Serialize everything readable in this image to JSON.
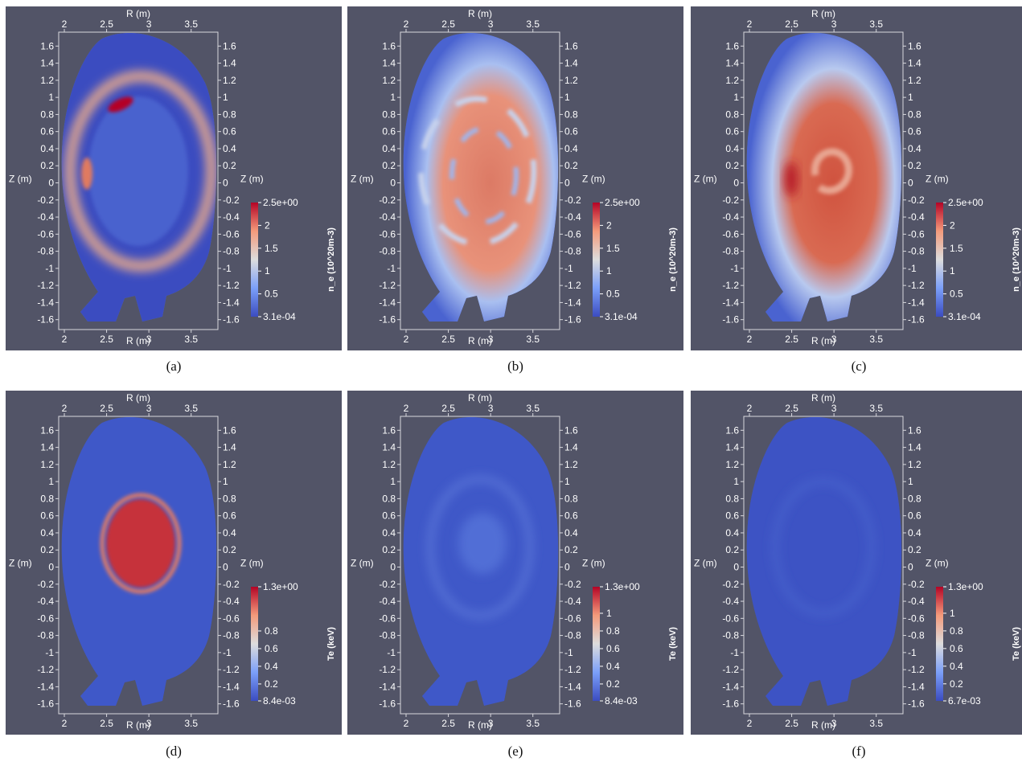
{
  "panels": [
    {
      "caption": "(a)",
      "quantity": "n_e",
      "pattern": "density-ring"
    },
    {
      "caption": "(b)",
      "quantity": "n_e",
      "pattern": "density-mixed"
    },
    {
      "caption": "(c)",
      "quantity": "n_e",
      "pattern": "density-swirl"
    },
    {
      "caption": "(d)",
      "quantity": "Te",
      "pattern": "temperature-hot-core"
    },
    {
      "caption": "(e)",
      "quantity": "Te",
      "pattern": "temperature-cooled"
    },
    {
      "caption": "(f)",
      "quantity": "Te",
      "pattern": "temperature-flat"
    }
  ],
  "colors": {
    "background": "#525467",
    "colormap": [
      "#3b4cc0",
      "#7b9ff9",
      "#dddddd",
      "#f49a7b",
      "#b40426"
    ]
  },
  "chart_data": [
    {
      "type": "heatmap",
      "panel": "(a)",
      "xlabel": "R (m)",
      "ylabel": "Z (m)",
      "xlim": [
        2,
        3.85
      ],
      "ylim": [
        -1.7,
        1.75
      ],
      "xticks": [
        "2",
        "2.5",
        "3",
        "3.5"
      ],
      "yticks": [
        "1.6",
        "1.4",
        "1.2",
        "1",
        "0.8",
        "0.6",
        "0.4",
        "0.2",
        "0",
        "-0.2",
        "-0.4",
        "-0.6",
        "-0.8",
        "-1",
        "-1.2",
        "-1.4",
        "-1.6"
      ],
      "colorbar": {
        "title": "n_e (10^20m-3)",
        "min": 0.00031,
        "max": 2.5,
        "min_label": "3.1e-04",
        "max_label": "2.5e+00",
        "ticks": [
          "2",
          "1.5",
          "1",
          "0.5"
        ]
      }
    },
    {
      "type": "heatmap",
      "panel": "(b)",
      "xlabel": "R (m)",
      "ylabel": "Z (m)",
      "xlim": [
        2,
        3.85
      ],
      "ylim": [
        -1.7,
        1.75
      ],
      "xticks": [
        "2",
        "2.5",
        "3",
        "3.5"
      ],
      "yticks": [
        "1.6",
        "1.4",
        "1.2",
        "1",
        "0.8",
        "0.6",
        "0.4",
        "0.2",
        "0",
        "-0.2",
        "-0.4",
        "-0.6",
        "-0.8",
        "-1",
        "-1.2",
        "-1.4",
        "-1.6"
      ],
      "colorbar": {
        "title": "n_e (10^20m-3)",
        "min": 0.00031,
        "max": 2.5,
        "min_label": "3.1e-04",
        "max_label": "2.5e+00",
        "ticks": [
          "2",
          "1.5",
          "1",
          "0.5"
        ]
      }
    },
    {
      "type": "heatmap",
      "panel": "(c)",
      "xlabel": "R (m)",
      "ylabel": "Z (m)",
      "xlim": [
        2,
        3.85
      ],
      "ylim": [
        -1.7,
        1.75
      ],
      "xticks": [
        "2",
        "2.5",
        "3",
        "3.5"
      ],
      "yticks": [
        "1.6",
        "1.4",
        "1.2",
        "1",
        "0.8",
        "0.6",
        "0.4",
        "0.2",
        "0",
        "-0.2",
        "-0.4",
        "-0.6",
        "-0.8",
        "-1",
        "-1.2",
        "-1.4",
        "-1.6"
      ],
      "colorbar": {
        "title": "n_e (10^20m-3)",
        "min": 0.00031,
        "max": 2.5,
        "min_label": "3.1e-04",
        "max_label": "2.5e+00",
        "ticks": [
          "2",
          "1.5",
          "1",
          "0.5"
        ]
      }
    },
    {
      "type": "heatmap",
      "panel": "(d)",
      "xlabel": "R (m)",
      "ylabel": "Z (m)",
      "xlim": [
        2,
        3.85
      ],
      "ylim": [
        -1.7,
        1.75
      ],
      "xticks": [
        "2",
        "2.5",
        "3",
        "3.5"
      ],
      "yticks": [
        "1.6",
        "1.4",
        "1.2",
        "1",
        "0.8",
        "0.6",
        "0.4",
        "0.2",
        "0",
        "-0.2",
        "-0.4",
        "-0.6",
        "-0.8",
        "-1",
        "-1.2",
        "-1.4",
        "-1.6"
      ],
      "colorbar": {
        "title": "Te (keV)",
        "min": 0.0084,
        "max": 1.3,
        "min_label": "8.4e-03",
        "max_label": "1.3e+00",
        "ticks": [
          "0.8",
          "0.6",
          "0.4",
          "0.2"
        ]
      }
    },
    {
      "type": "heatmap",
      "panel": "(e)",
      "xlabel": "R (m)",
      "ylabel": "Z (m)",
      "xlim": [
        2,
        3.85
      ],
      "ylim": [
        -1.7,
        1.75
      ],
      "xticks": [
        "2",
        "2.5",
        "3",
        "3.5"
      ],
      "yticks": [
        "1.6",
        "1.4",
        "1.2",
        "1",
        "0.8",
        "0.6",
        "0.4",
        "0.2",
        "0",
        "-0.2",
        "-0.4",
        "-0.6",
        "-0.8",
        "-1",
        "-1.2",
        "-1.4",
        "-1.6"
      ],
      "colorbar": {
        "title": "Te (keV)",
        "min": 0.0084,
        "max": 1.3,
        "min_label": "8.4e-03",
        "max_label": "1.3e+00",
        "ticks": [
          "1",
          "0.8",
          "0.6",
          "0.4",
          "0.2"
        ]
      }
    },
    {
      "type": "heatmap",
      "panel": "(f)",
      "xlabel": "R (m)",
      "ylabel": "Z (m)",
      "xlim": [
        2,
        3.85
      ],
      "ylim": [
        -1.7,
        1.75
      ],
      "xticks": [
        "2",
        "2.5",
        "3",
        "3.5"
      ],
      "yticks": [
        "1.6",
        "1.4",
        "1.2",
        "1",
        "0.8",
        "0.6",
        "0.4",
        "0.2",
        "0",
        "-0.2",
        "-0.4",
        "-0.6",
        "-0.8",
        "-1",
        "-1.2",
        "-1.4",
        "-1.6"
      ],
      "colorbar": {
        "title": "Te (keV)",
        "min": 0.0067,
        "max": 1.3,
        "min_label": "6.7e-03",
        "max_label": "1.3e+00",
        "ticks": [
          "1",
          "0.8",
          "0.6",
          "0.4",
          "0.2"
        ]
      }
    }
  ]
}
